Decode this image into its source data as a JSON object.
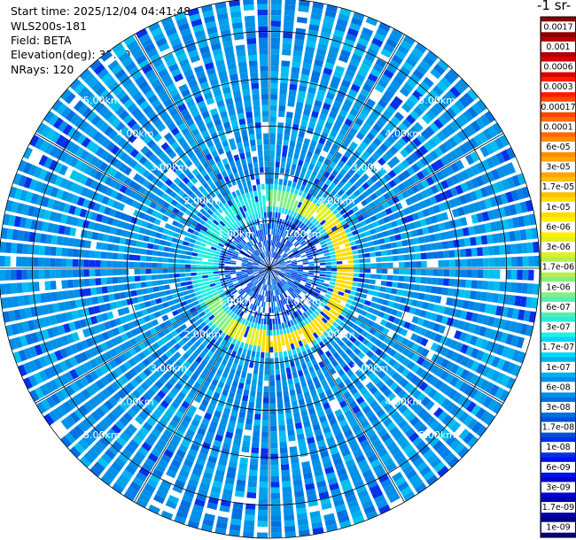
{
  "info": {
    "start_time": "Start time: 2025/12/04 04:41:48",
    "device": "WLS200s-181",
    "field": "Field: BETA",
    "elevation": "Elevation(deg): 35.00",
    "nrays": "NRays: 120"
  },
  "colorbar": {
    "title": "-1 sr-",
    "labels": [
      "0.0017",
      "0.001",
      "0.0006",
      "0.0003",
      "0.00017",
      "0.0001",
      "6e-05",
      "3e-05",
      "1.7e-05",
      "1e-05",
      "6e-06",
      "3e-06",
      "1.7e-06",
      "1e-06",
      "6e-07",
      "3e-07",
      "1.7e-07",
      "1e-07",
      "6e-08",
      "3e-08",
      "1.7e-08",
      "1e-08",
      "6e-09",
      "3e-09",
      "1.7e-09",
      "1e-09"
    ],
    "colors": [
      "#8b0000",
      "#b00000",
      "#d80000",
      "#ff1a00",
      "#ff4500",
      "#ff6a00",
      "#ff8c00",
      "#ffa500",
      "#ffc000",
      "#ffdd00",
      "#fff000",
      "#e0f020",
      "#b0f050",
      "#80f080",
      "#50f0b0",
      "#20f0e0",
      "#00d8f8",
      "#00b0f0",
      "#0090e8",
      "#0070e0",
      "#0050e0",
      "#0030e8",
      "#0010f0",
      "#0000d8",
      "#0000a8",
      "#000080"
    ]
  },
  "chart_data": {
    "type": "heatmap",
    "projection": "polar-ppi",
    "field": "BETA",
    "elevation_deg": 35.0,
    "n_rays": 120,
    "range_max_km": 5.7,
    "range_rings_km": [
      1.0,
      2.0,
      3.0,
      4.0,
      5.0
    ],
    "ring_labels": [
      "1.00km",
      "2.00km",
      "3.00km",
      "4.00km",
      "5.00km"
    ],
    "azimuth_lines_deg": [
      0,
      30,
      60,
      90,
      120,
      150,
      180,
      210,
      240,
      270,
      300,
      330
    ],
    "background_level": "1e-07 to 6e-08",
    "features": [
      {
        "name": "aerosol ring",
        "range_km": [
          1.5,
          2.0
        ],
        "peak_value": "1.7e-05"
      }
    ]
  }
}
